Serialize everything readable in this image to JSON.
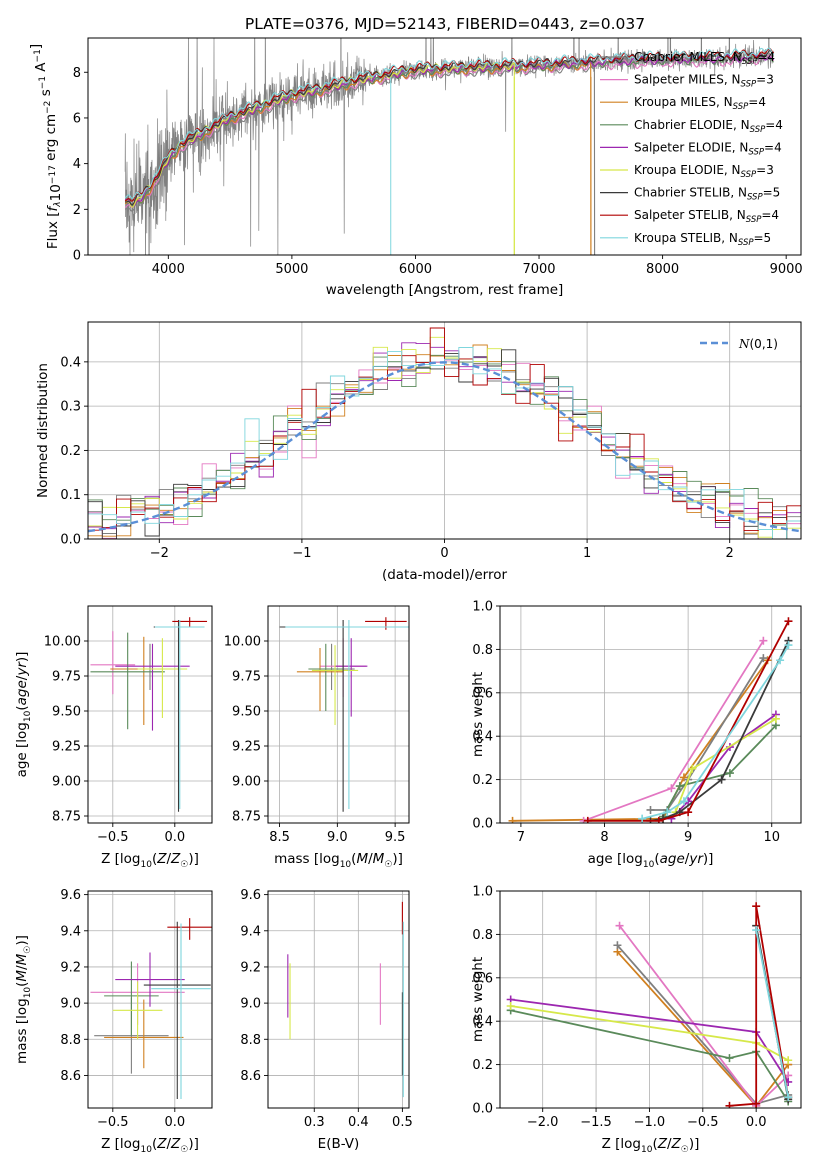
{
  "figure": {
    "title": "PLATE=0376, MJD=52143, FIBERID=0443, z=0.037"
  },
  "colors": {
    "data": "#808080",
    "normal": "#5b8fd6",
    "models": [
      "#7f7f7f",
      "#e377c2",
      "#d08020",
      "#5a8a5a",
      "#9c27b0",
      "#d6e84a",
      "#3a3a3a",
      "#b00000",
      "#7fd6dd"
    ]
  },
  "chart_data": [
    {
      "id": "spectrum",
      "type": "line",
      "title": "PLATE=0376, MJD=52143, FIBERID=0443, z=0.037",
      "xlabel": "wavelength [Angstrom, rest frame]",
      "ylabel": "Flux [f_λ10^-17 erg cm^-2 s^-1 A^-1]",
      "xlim": [
        3350,
        9120
      ],
      "ylim": [
        0,
        9.5
      ],
      "xticks": [
        4000,
        5000,
        6000,
        7000,
        8000,
        9000
      ],
      "yticks": [
        0,
        2,
        4,
        6,
        8
      ],
      "grid": false,
      "legend_position": "right",
      "continuum": {
        "x": [
          3650,
          3700,
          3800,
          3900,
          4000,
          4100,
          4300,
          4500,
          4800,
          5000,
          5200,
          5500,
          5800,
          6000,
          6500,
          7000,
          7500,
          8000,
          8500,
          8850
        ],
        "y": [
          2.4,
          2.2,
          2.6,
          3.3,
          4.2,
          4.8,
          5.4,
          6.0,
          6.6,
          7.0,
          7.2,
          7.6,
          7.9,
          8.1,
          8.2,
          8.3,
          8.45,
          8.55,
          8.6,
          8.7
        ]
      },
      "series": [
        {
          "name": "Chabrier MILES, N_SSP=4",
          "label_main": "Chabrier MILES, N",
          "label_sub": "SSP",
          "label_tail": "=4"
        },
        {
          "name": "Salpeter MILES, N_SSP=3",
          "label_main": "Salpeter MILES, N",
          "label_sub": "SSP",
          "label_tail": "=3"
        },
        {
          "name": "Kroupa MILES, N_SSP=4",
          "label_main": "Kroupa MILES, N",
          "label_sub": "SSP",
          "label_tail": "=4"
        },
        {
          "name": "Chabrier ELODIE, N_SSP=4",
          "label_main": "Chabrier ELODIE, N",
          "label_sub": "SSP",
          "label_tail": "=4"
        },
        {
          "name": "Salpeter ELODIE, N_SSP=4",
          "label_main": "Salpeter ELODIE, N",
          "label_sub": "SSP",
          "label_tail": "=4"
        },
        {
          "name": "Kroupa ELODIE, N_SSP=3",
          "label_main": "Kroupa ELODIE, N",
          "label_sub": "SSP",
          "label_tail": "=3"
        },
        {
          "name": "Chabrier STELIB, N_SSP=5",
          "label_main": "Chabrier STELIB, N",
          "label_sub": "SSP",
          "label_tail": "=5"
        },
        {
          "name": "Salpeter STELIB, N_SSP=4",
          "label_main": "Salpeter STELIB, N",
          "label_sub": "SSP",
          "label_tail": "=4"
        },
        {
          "name": "Kroupa STELIB, N_SSP=5",
          "label_main": "Kroupa STELIB, N",
          "label_sub": "SSP",
          "label_tail": "=5"
        }
      ],
      "model_ranges": [
        [
          3650,
          7450
        ],
        [
          3650,
          8900
        ],
        [
          3650,
          7420
        ],
        [
          3650,
          8900
        ],
        [
          3650,
          8900
        ],
        [
          3650,
          6800
        ],
        [
          3650,
          8900
        ],
        [
          3650,
          8900
        ],
        [
          3650,
          8900
        ]
      ],
      "drop_lines": [
        5800,
        6800,
        7420
      ]
    },
    {
      "id": "residuals",
      "type": "histogram",
      "xlabel": "(data-model)/error",
      "ylabel": "Normed distribution",
      "xlim": [
        -2.5,
        2.5
      ],
      "ylim": [
        0,
        0.49
      ],
      "xticks": [
        -2,
        -1,
        0,
        1,
        2
      ],
      "yticks": [
        0.0,
        0.1,
        0.2,
        0.3,
        0.4
      ],
      "grid": true,
      "legend_position": "top-right",
      "legend_label": "N(0,1)",
      "bin_width": 0.1
    },
    {
      "id": "age-vs-Z",
      "type": "scatter",
      "xlabel": "Z [log10(Z/Z☉)]",
      "ylabel": "age [log10(age/yr)]",
      "xlim": [
        -0.7,
        0.3
      ],
      "ylim": [
        8.7,
        10.25
      ],
      "xticks": [
        -0.5,
        0.0
      ],
      "yticks": [
        8.75,
        9.0,
        9.25,
        9.5,
        9.75,
        10.0
      ],
      "grid": true,
      "points": [
        {
          "x": -0.2,
          "y": 9.8,
          "xerr": 0.25,
          "ylo": 9.65,
          "yhi": 9.98,
          "c": 0
        },
        {
          "x": -0.5,
          "y": 9.83,
          "xerr": 0.18,
          "ylo": 9.62,
          "yhi": 10.07,
          "c": 1
        },
        {
          "x": -0.25,
          "y": 9.8,
          "xerr": 0.27,
          "ylo": 9.4,
          "yhi": 10.03,
          "c": 2
        },
        {
          "x": -0.38,
          "y": 9.78,
          "xerr": 0.3,
          "ylo": 9.37,
          "yhi": 10.06,
          "c": 3
        },
        {
          "x": -0.18,
          "y": 9.82,
          "xerr": 0.3,
          "ylo": 9.36,
          "yhi": 9.98,
          "c": 4
        },
        {
          "x": -0.1,
          "y": 9.8,
          "xerr": 0.2,
          "ylo": 9.45,
          "yhi": 10.02,
          "c": 5
        },
        {
          "x": 0.03,
          "y": 10.1,
          "xerr": 0.2,
          "ylo": 8.78,
          "yhi": 10.15,
          "c": 6
        },
        {
          "x": 0.12,
          "y": 10.14,
          "xerr": 0.14,
          "ylo": 10.1,
          "yhi": 10.17,
          "c": 7
        },
        {
          "x": 0.04,
          "y": 10.1,
          "xerr": 0.2,
          "ylo": 8.8,
          "yhi": 10.15,
          "c": 8
        }
      ]
    },
    {
      "id": "age-vs-mass",
      "type": "scatter",
      "xlabel": "mass [log10(M/M☉)]",
      "ylabel": "",
      "xlim": [
        8.4,
        9.62
      ],
      "ylim": [
        8.7,
        10.25
      ],
      "xticks": [
        8.5,
        9.0,
        9.5
      ],
      "yticks": [
        8.75,
        9.0,
        9.25,
        9.5,
        9.75,
        10.0
      ],
      "grid": true,
      "points": [
        {
          "x": 8.95,
          "y": 9.8,
          "xerr": 0.2,
          "ylo": 9.65,
          "yhi": 9.98,
          "c": 0
        },
        {
          "x": 9.05,
          "y": 9.82,
          "xerr": 0.2,
          "ylo": 9.6,
          "yhi": 10.02,
          "c": 1
        },
        {
          "x": 8.85,
          "y": 9.78,
          "xerr": 0.2,
          "ylo": 9.5,
          "yhi": 9.95,
          "c": 2
        },
        {
          "x": 8.9,
          "y": 9.8,
          "xerr": 0.15,
          "ylo": 9.5,
          "yhi": 9.98,
          "c": 3
        },
        {
          "x": 9.12,
          "y": 9.82,
          "xerr": 0.14,
          "ylo": 9.46,
          "yhi": 10.02,
          "c": 4
        },
        {
          "x": 8.98,
          "y": 9.79,
          "xerr": 0.2,
          "ylo": 9.4,
          "yhi": 9.97,
          "c": 5
        },
        {
          "x": 9.05,
          "y": 10.1,
          "xerr": 0.55,
          "ylo": 8.78,
          "yhi": 10.15,
          "c": 6
        },
        {
          "x": 9.42,
          "y": 10.14,
          "xerr": 0.18,
          "ylo": 10.08,
          "yhi": 10.17,
          "c": 7
        },
        {
          "x": 9.1,
          "y": 10.1,
          "xerr": 0.55,
          "ylo": 8.8,
          "yhi": 10.15,
          "c": 8
        }
      ]
    },
    {
      "id": "massweight-vs-age",
      "type": "line",
      "xlabel": "age [log10(age/yr)]",
      "ylabel": "mass weight",
      "xlim": [
        6.75,
        10.35
      ],
      "ylim": [
        0,
        1.0
      ],
      "xticks": [
        7,
        8,
        9,
        10
      ],
      "yticks": [
        0.0,
        0.2,
        0.4,
        0.6,
        0.8,
        1.0
      ],
      "grid": true,
      "series": [
        {
          "c": 2,
          "x": [
            6.9,
            8.7,
            8.95,
            9.95
          ],
          "y": [
            0.01,
            0.02,
            0.21,
            0.75
          ]
        },
        {
          "c": 1,
          "x": [
            7.75,
            8.8,
            9.9
          ],
          "y": [
            0.01,
            0.16,
            0.84
          ]
        },
        {
          "c": 0,
          "x": [
            8.55,
            8.75,
            9.0,
            9.9
          ],
          "y": [
            0.06,
            0.06,
            0.2,
            0.76
          ]
        },
        {
          "c": 3,
          "x": [
            8.7,
            8.9,
            9.5,
            10.05
          ],
          "y": [
            0.03,
            0.17,
            0.23,
            0.45
          ]
        },
        {
          "c": 4,
          "x": [
            8.8,
            9.0,
            9.5,
            10.05
          ],
          "y": [
            0.02,
            0.1,
            0.35,
            0.5
          ]
        },
        {
          "c": 5,
          "x": [
            8.85,
            9.05,
            10.05
          ],
          "y": [
            0.05,
            0.25,
            0.48
          ]
        },
        {
          "c": 6,
          "x": [
            8.55,
            8.7,
            8.9,
            9.4,
            10.2
          ],
          "y": [
            0.01,
            0.02,
            0.05,
            0.2,
            0.84
          ]
        },
        {
          "c": 7,
          "x": [
            7.8,
            8.65,
            9.0,
            10.2
          ],
          "y": [
            0.01,
            0.01,
            0.05,
            0.93
          ]
        },
        {
          "c": 8,
          "x": [
            8.45,
            8.75,
            8.95,
            10.1,
            10.2
          ],
          "y": [
            0.02,
            0.05,
            0.1,
            0.75,
            0.82
          ]
        }
      ]
    },
    {
      "id": "mass-vs-Z",
      "type": "scatter",
      "xlabel": "Z [log10(Z/Z☉)]",
      "ylabel": "mass [log10(M/M☉)]",
      "xlim": [
        -0.7,
        0.3
      ],
      "ylim": [
        8.42,
        9.62
      ],
      "xticks": [
        -0.5,
        0.0
      ],
      "yticks": [
        8.6,
        8.8,
        9.0,
        9.2,
        9.4,
        9.6
      ],
      "grid": true,
      "points": [
        {
          "x": -0.35,
          "y": 8.82,
          "xerr": 0.3,
          "ylo": 8.61,
          "yhi": 9.03,
          "c": 0
        },
        {
          "x": -0.3,
          "y": 9.06,
          "xerr": 0.38,
          "ylo": 8.88,
          "yhi": 9.22,
          "c": 1
        },
        {
          "x": -0.25,
          "y": 8.81,
          "xerr": 0.32,
          "ylo": 8.64,
          "yhi": 9.02,
          "c": 2
        },
        {
          "x": -0.35,
          "y": 9.04,
          "xerr": 0.22,
          "ylo": 8.82,
          "yhi": 9.23,
          "c": 3
        },
        {
          "x": -0.2,
          "y": 9.13,
          "xerr": 0.28,
          "ylo": 8.98,
          "yhi": 9.28,
          "c": 4
        },
        {
          "x": -0.3,
          "y": 8.96,
          "xerr": 0.2,
          "ylo": 8.8,
          "yhi": 9.12,
          "c": 5
        },
        {
          "x": 0.02,
          "y": 9.1,
          "xerr": 0.27,
          "ylo": 8.47,
          "yhi": 9.45,
          "c": 6
        },
        {
          "x": 0.12,
          "y": 9.42,
          "xerr": 0.18,
          "ylo": 9.35,
          "yhi": 9.47,
          "c": 7
        },
        {
          "x": 0.05,
          "y": 9.08,
          "xerr": 0.24,
          "ylo": 8.47,
          "yhi": 9.44,
          "c": 8
        }
      ]
    },
    {
      "id": "mass-vs-ebv",
      "type": "scatter",
      "xlabel": "E(B-V)",
      "ylabel": "",
      "xlim": [
        0.195,
        0.515
      ],
      "ylim": [
        8.42,
        9.62
      ],
      "xticks": [
        0.3,
        0.4,
        0.5
      ],
      "yticks": [
        8.6,
        8.8,
        9.0,
        9.2,
        9.4,
        9.6
      ],
      "grid": true,
      "points": [
        {
          "x": 0.245,
          "y": 9.05,
          "ylo": 8.8,
          "yhi": 9.22,
          "c": 5
        },
        {
          "x": 0.24,
          "y": 9.1,
          "ylo": 8.92,
          "yhi": 9.27,
          "c": 4
        },
        {
          "x": 0.45,
          "y": 9.05,
          "ylo": 8.88,
          "yhi": 9.22,
          "c": 1
        },
        {
          "x": 0.5,
          "y": 9.45,
          "ylo": 9.38,
          "yhi": 9.56,
          "c": 7
        },
        {
          "x": 0.5,
          "y": 8.82,
          "ylo": 8.6,
          "yhi": 9.06,
          "c": 6
        },
        {
          "x": 0.502,
          "y": 9.0,
          "ylo": 8.48,
          "yhi": 9.45,
          "c": 8
        }
      ]
    },
    {
      "id": "massweight-vs-Z",
      "type": "line",
      "xlabel": "Z [log10(Z/Z☉)]",
      "ylabel": "mass weight",
      "xlim": [
        -2.4,
        0.42
      ],
      "ylim": [
        0,
        1.0
      ],
      "xticks": [
        -2.0,
        -1.5,
        -1.0,
        -0.5,
        0.0
      ],
      "yticks": [
        0.0,
        0.2,
        0.4,
        0.6,
        0.8,
        1.0
      ],
      "grid": true,
      "series": [
        {
          "c": 2,
          "x": [
            -1.3,
            0.0,
            0.3
          ],
          "y": [
            0.72,
            0.01,
            0.2
          ]
        },
        {
          "c": 0,
          "x": [
            -1.3,
            0.0,
            0.3
          ],
          "y": [
            0.75,
            0.02,
            0.06
          ]
        },
        {
          "c": 1,
          "x": [
            -1.28,
            0.0,
            0.3
          ],
          "y": [
            0.84,
            0.01,
            0.15
          ]
        },
        {
          "c": 3,
          "x": [
            -2.3,
            -0.25,
            0.0,
            0.3
          ],
          "y": [
            0.45,
            0.23,
            0.26,
            0.03
          ]
        },
        {
          "c": 4,
          "x": [
            -2.3,
            0.0,
            0.3
          ],
          "y": [
            0.5,
            0.35,
            0.12
          ]
        },
        {
          "c": 5,
          "x": [
            -2.3,
            0.0,
            0.3
          ],
          "y": [
            0.47,
            0.3,
            0.22
          ]
        },
        {
          "c": 6,
          "x": [
            0.0,
            0.3
          ],
          "y": [
            0.84,
            0.04
          ]
        },
        {
          "c": 7,
          "x": [
            -0.25,
            0.0,
            0.0,
            0.3
          ],
          "y": [
            0.01,
            0.02,
            0.93,
            0.05
          ]
        },
        {
          "c": 8,
          "x": [
            0.0,
            0.3
          ],
          "y": [
            0.82,
            0.05
          ]
        }
      ]
    }
  ]
}
